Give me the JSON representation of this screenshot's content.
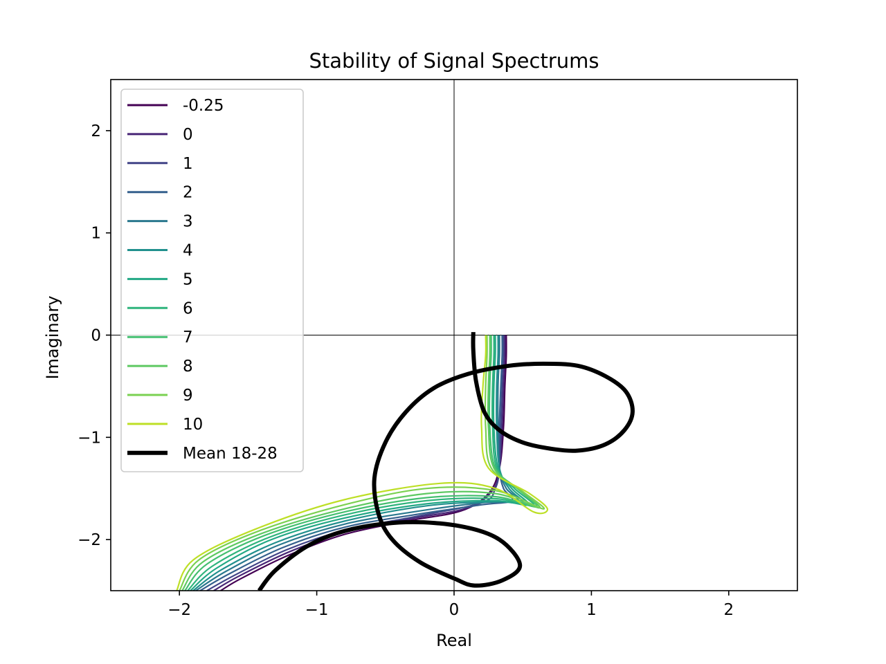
{
  "chart_data": {
    "type": "line",
    "title": "Stability of Signal Spectrums",
    "xlabel": "Real",
    "ylabel": "Imaginary",
    "xlim": [
      -2.5,
      2.5
    ],
    "ylim": [
      -2.5,
      2.5
    ],
    "xticks": [
      -2,
      -1,
      0,
      1,
      2
    ],
    "yticks": [
      -2,
      -1,
      0,
      1,
      2
    ],
    "xtick_labels": [
      "−2",
      "−1",
      "0",
      "1",
      "2"
    ],
    "ytick_labels": [
      "−2",
      "−1",
      "0",
      "1",
      "2"
    ],
    "grid": false,
    "reference_lines": {
      "x": 0,
      "y": 0
    },
    "legend": {
      "position": "upper-left"
    },
    "series": [
      {
        "name": "-0.25",
        "color": "#440154",
        "points": [
          [
            0.38,
            0.0
          ],
          [
            0.38,
            -0.2
          ],
          [
            0.37,
            -0.5
          ],
          [
            0.36,
            -0.9
          ],
          [
            0.33,
            -1.3
          ],
          [
            0.25,
            -1.55
          ],
          [
            0.05,
            -1.72
          ],
          [
            -0.35,
            -1.82
          ],
          [
            -0.8,
            -1.95
          ],
          [
            -1.2,
            -2.15
          ],
          [
            -1.55,
            -2.38
          ],
          [
            -1.7,
            -2.5
          ]
        ]
      },
      {
        "name": "0",
        "color": "#482576",
        "points": [
          [
            0.37,
            0.0
          ],
          [
            0.37,
            -0.2
          ],
          [
            0.36,
            -0.5
          ],
          [
            0.35,
            -0.9
          ],
          [
            0.33,
            -1.3
          ],
          [
            0.28,
            -1.52
          ],
          [
            0.1,
            -1.69
          ],
          [
            -0.33,
            -1.8
          ],
          [
            -0.8,
            -1.93
          ],
          [
            -1.2,
            -2.12
          ],
          [
            -1.57,
            -2.36
          ],
          [
            -1.75,
            -2.5
          ]
        ]
      },
      {
        "name": "1",
        "color": "#414487",
        "points": [
          [
            0.36,
            0.0
          ],
          [
            0.36,
            -0.2
          ],
          [
            0.35,
            -0.5
          ],
          [
            0.34,
            -0.9
          ],
          [
            0.33,
            -1.3
          ],
          [
            0.3,
            -1.5
          ],
          [
            0.2,
            -1.64
          ],
          [
            -0.3,
            -1.78
          ],
          [
            -0.8,
            -1.91
          ],
          [
            -1.22,
            -2.1
          ],
          [
            -1.6,
            -2.35
          ],
          [
            -1.8,
            -2.5
          ]
        ]
      },
      {
        "name": "2",
        "color": "#35608d",
        "points": [
          [
            0.35,
            0.0
          ],
          [
            0.35,
            -0.2
          ],
          [
            0.34,
            -0.5
          ],
          [
            0.33,
            -0.9
          ],
          [
            0.33,
            -1.3
          ],
          [
            0.36,
            -1.5
          ],
          [
            0.42,
            -1.62
          ],
          [
            0.2,
            -1.66
          ],
          [
            -0.3,
            -1.76
          ],
          [
            -0.8,
            -1.88
          ],
          [
            -1.25,
            -2.08
          ],
          [
            -1.63,
            -2.33
          ],
          [
            -1.85,
            -2.5
          ]
        ]
      },
      {
        "name": "3",
        "color": "#2a788e",
        "points": [
          [
            0.33,
            0.0
          ],
          [
            0.33,
            -0.2
          ],
          [
            0.32,
            -0.5
          ],
          [
            0.32,
            -0.9
          ],
          [
            0.33,
            -1.3
          ],
          [
            0.38,
            -1.5
          ],
          [
            0.46,
            -1.62
          ],
          [
            0.2,
            -1.64
          ],
          [
            -0.3,
            -1.73
          ],
          [
            -0.8,
            -1.85
          ],
          [
            -1.27,
            -2.05
          ],
          [
            -1.66,
            -2.31
          ],
          [
            -1.88,
            -2.5
          ]
        ]
      },
      {
        "name": "4",
        "color": "#21908d",
        "points": [
          [
            0.32,
            0.0
          ],
          [
            0.32,
            -0.2
          ],
          [
            0.31,
            -0.5
          ],
          [
            0.31,
            -0.9
          ],
          [
            0.33,
            -1.3
          ],
          [
            0.4,
            -1.5
          ],
          [
            0.5,
            -1.64
          ],
          [
            0.3,
            -1.63
          ],
          [
            -0.2,
            -1.67
          ],
          [
            -0.8,
            -1.82
          ],
          [
            -1.3,
            -2.03
          ],
          [
            -1.7,
            -2.3
          ],
          [
            -1.9,
            -2.5
          ]
        ]
      },
      {
        "name": "5",
        "color": "#22a884",
        "points": [
          [
            0.3,
            0.0
          ],
          [
            0.3,
            -0.2
          ],
          [
            0.29,
            -0.5
          ],
          [
            0.29,
            -0.9
          ],
          [
            0.32,
            -1.3
          ],
          [
            0.42,
            -1.5
          ],
          [
            0.54,
            -1.66
          ],
          [
            0.3,
            -1.62
          ],
          [
            -0.2,
            -1.65
          ],
          [
            -0.8,
            -1.79
          ],
          [
            -1.33,
            -2.0
          ],
          [
            -1.73,
            -2.28
          ],
          [
            -1.92,
            -2.5
          ]
        ]
      },
      {
        "name": "6",
        "color": "#2fb47c",
        "points": [
          [
            0.29,
            0.0
          ],
          [
            0.29,
            -0.2
          ],
          [
            0.28,
            -0.5
          ],
          [
            0.28,
            -0.9
          ],
          [
            0.31,
            -1.3
          ],
          [
            0.44,
            -1.5
          ],
          [
            0.58,
            -1.67
          ],
          [
            0.3,
            -1.6
          ],
          [
            -0.2,
            -1.62
          ],
          [
            -0.8,
            -1.76
          ],
          [
            -1.35,
            -1.98
          ],
          [
            -1.76,
            -2.26
          ],
          [
            -1.94,
            -2.5
          ]
        ]
      },
      {
        "name": "7",
        "color": "#44bf70",
        "points": [
          [
            0.27,
            0.0
          ],
          [
            0.27,
            -0.2
          ],
          [
            0.26,
            -0.5
          ],
          [
            0.26,
            -0.9
          ],
          [
            0.3,
            -1.3
          ],
          [
            0.46,
            -1.5
          ],
          [
            0.6,
            -1.68
          ],
          [
            0.3,
            -1.58
          ],
          [
            -0.2,
            -1.59
          ],
          [
            -0.8,
            -1.73
          ],
          [
            -1.38,
            -1.96
          ],
          [
            -1.8,
            -2.24
          ],
          [
            -1.96,
            -2.5
          ]
        ]
      },
      {
        "name": "8",
        "color": "#5ec962",
        "points": [
          [
            0.26,
            0.0
          ],
          [
            0.26,
            -0.2
          ],
          [
            0.25,
            -0.5
          ],
          [
            0.25,
            -0.9
          ],
          [
            0.29,
            -1.3
          ],
          [
            0.48,
            -1.52
          ],
          [
            0.62,
            -1.69
          ],
          [
            0.3,
            -1.55
          ],
          [
            -0.2,
            -1.55
          ],
          [
            -0.8,
            -1.7
          ],
          [
            -1.4,
            -1.94
          ],
          [
            -1.83,
            -2.22
          ],
          [
            -1.98,
            -2.5
          ]
        ]
      },
      {
        "name": "9",
        "color": "#7ad151",
        "points": [
          [
            0.24,
            0.0
          ],
          [
            0.24,
            -0.2
          ],
          [
            0.23,
            -0.5
          ],
          [
            0.23,
            -0.9
          ],
          [
            0.27,
            -1.3
          ],
          [
            0.5,
            -1.53
          ],
          [
            0.65,
            -1.7
          ],
          [
            0.3,
            -1.52
          ],
          [
            -0.2,
            -1.5
          ],
          [
            -0.8,
            -1.66
          ],
          [
            -1.43,
            -1.92
          ],
          [
            -1.86,
            -2.2
          ],
          [
            -2.0,
            -2.5
          ]
        ]
      },
      {
        "name": "10",
        "color": "#bddf26",
        "points": [
          [
            0.23,
            0.0
          ],
          [
            0.23,
            -0.2
          ],
          [
            0.21,
            -0.5
          ],
          [
            0.2,
            -0.9
          ],
          [
            0.25,
            -1.3
          ],
          [
            0.55,
            -1.55
          ],
          [
            0.68,
            -1.7
          ],
          [
            0.58,
            -1.73
          ],
          [
            0.3,
            -1.5
          ],
          [
            -0.1,
            -1.45
          ],
          [
            -0.8,
            -1.61
          ],
          [
            -1.45,
            -1.9
          ],
          [
            -1.9,
            -2.2
          ],
          [
            -2.02,
            -2.5
          ]
        ]
      },
      {
        "name": "Mean 18-28",
        "color": "#000000",
        "points": [
          [
            0.14,
            0.03
          ],
          [
            0.14,
            -0.15
          ],
          [
            0.16,
            -0.45
          ],
          [
            0.22,
            -0.75
          ],
          [
            0.33,
            -0.93
          ],
          [
            0.5,
            -1.05
          ],
          [
            0.7,
            -1.11
          ],
          [
            0.9,
            -1.13
          ],
          [
            1.1,
            -1.07
          ],
          [
            1.24,
            -0.93
          ],
          [
            1.3,
            -0.75
          ],
          [
            1.25,
            -0.55
          ],
          [
            1.1,
            -0.4
          ],
          [
            0.9,
            -0.3
          ],
          [
            0.65,
            -0.28
          ],
          [
            0.4,
            -0.3
          ],
          [
            0.1,
            -0.38
          ],
          [
            -0.15,
            -0.52
          ],
          [
            -0.35,
            -0.75
          ],
          [
            -0.5,
            -1.05
          ],
          [
            -0.58,
            -1.4
          ],
          [
            -0.55,
            -1.75
          ],
          [
            -0.45,
            -2.0
          ],
          [
            -0.25,
            -2.22
          ],
          [
            0.0,
            -2.38
          ],
          [
            0.15,
            -2.45
          ],
          [
            0.35,
            -2.4
          ],
          [
            0.48,
            -2.25
          ],
          [
            0.33,
            -2.0
          ],
          [
            0.05,
            -1.87
          ],
          [
            -0.35,
            -1.83
          ],
          [
            -0.75,
            -1.9
          ],
          [
            -1.05,
            -2.05
          ],
          [
            -1.3,
            -2.3
          ],
          [
            -1.42,
            -2.5
          ]
        ]
      }
    ]
  }
}
